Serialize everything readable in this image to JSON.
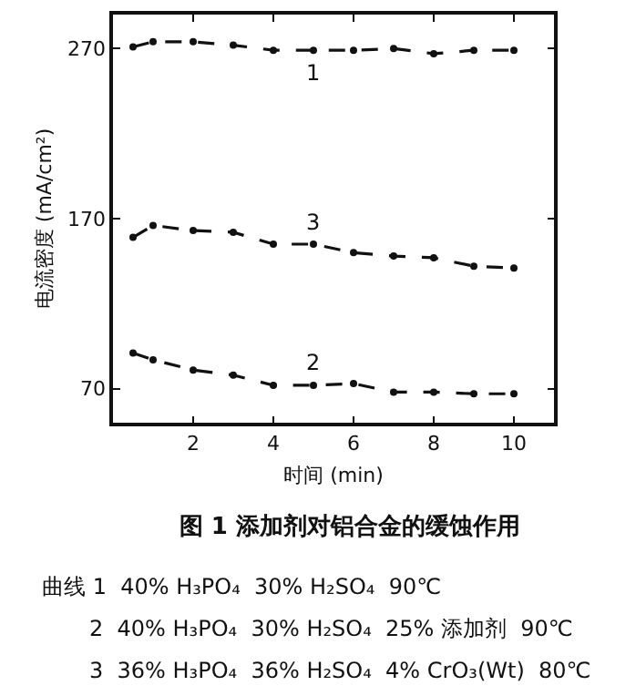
{
  "chart_data": {
    "type": "line",
    "title": "图 1 添加剂对铝合金的缓蚀作用",
    "xlabel": "时间 (min)",
    "ylabel": "电流密度 (mA/cm²)",
    "x": [
      0.5,
      1,
      2,
      3,
      4,
      5,
      6,
      7,
      8,
      9,
      10
    ],
    "series": [
      {
        "name": "1",
        "color": "#111111",
        "values": [
          271,
          274,
          274,
          272,
          269,
          269,
          269,
          270,
          267,
          269,
          269
        ]
      },
      {
        "name": "2",
        "color": "#111111",
        "values": [
          91,
          87,
          81,
          78,
          72,
          72,
          73,
          68,
          68,
          67,
          67
        ]
      },
      {
        "name": "3",
        "color": "#111111",
        "values": [
          159,
          166,
          163,
          162,
          155,
          155,
          150,
          148,
          147,
          142,
          141
        ]
      }
    ],
    "xlim": [
      0,
      11
    ],
    "xticks": [
      2,
      4,
      6,
      8,
      10
    ],
    "ylim": [
      50,
      290
    ],
    "yticks": [
      70,
      170,
      270
    ],
    "grid": false,
    "legend": false,
    "marker": "circle",
    "line_style": "dashed",
    "annotations": [
      "曲线 1  40% H₃PO₄  30% H₂SO₄  90℃",
      "2  40% H₃PO₄  30% H₂SO₄  25% 添加剂  90℃",
      "3  36% H₃PO₄  36% H₂SO₄  4% CrO₃(Wt)  80℃"
    ]
  }
}
